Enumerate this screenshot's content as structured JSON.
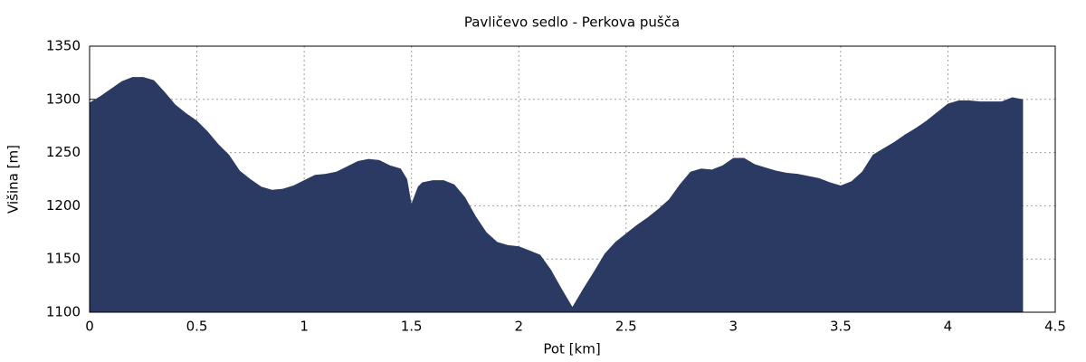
{
  "chart_data": {
    "type": "area",
    "title": "Pavličevo sedlo - Perkova pušča",
    "xlabel": "Pot [km]",
    "ylabel": "Višina [m]",
    "color": "#2b3a63",
    "grid": true,
    "xlim": [
      0,
      4.5
    ],
    "xticks": [
      0,
      0.5,
      1,
      1.5,
      2,
      2.5,
      3,
      3.5,
      4,
      4.5
    ],
    "ylim": [
      1100,
      1350
    ],
    "yticks": [
      1100,
      1150,
      1200,
      1250,
      1300,
      1350
    ],
    "x": [
      0,
      0.05,
      0.1,
      0.15,
      0.2,
      0.25,
      0.3,
      0.35,
      0.4,
      0.45,
      0.5,
      0.55,
      0.6,
      0.65,
      0.7,
      0.75,
      0.8,
      0.85,
      0.9,
      0.95,
      1.0,
      1.05,
      1.1,
      1.15,
      1.2,
      1.25,
      1.3,
      1.35,
      1.4,
      1.45,
      1.48,
      1.5,
      1.53,
      1.55,
      1.6,
      1.65,
      1.7,
      1.75,
      1.8,
      1.85,
      1.9,
      1.95,
      2.0,
      2.05,
      2.1,
      2.15,
      2.2,
      2.25,
      2.3,
      2.35,
      2.4,
      2.45,
      2.5,
      2.55,
      2.6,
      2.65,
      2.7,
      2.75,
      2.8,
      2.85,
      2.9,
      2.95,
      3.0,
      3.05,
      3.1,
      3.15,
      3.2,
      3.25,
      3.3,
      3.35,
      3.4,
      3.45,
      3.5,
      3.55,
      3.6,
      3.65,
      3.7,
      3.75,
      3.8,
      3.85,
      3.9,
      3.95,
      4.0,
      4.05,
      4.1,
      4.15,
      4.2,
      4.25,
      4.3,
      4.35
    ],
    "values": [
      1297,
      1303,
      1310,
      1317,
      1321,
      1321,
      1318,
      1307,
      1295,
      1287,
      1280,
      1270,
      1258,
      1248,
      1233,
      1225,
      1218,
      1215,
      1216,
      1219,
      1224,
      1229,
      1230,
      1232,
      1237,
      1242,
      1244,
      1243,
      1238,
      1235,
      1225,
      1202,
      1218,
      1222,
      1224,
      1224,
      1220,
      1208,
      1190,
      1175,
      1166,
      1163,
      1162,
      1158,
      1154,
      1140,
      1122,
      1105,
      1122,
      1138,
      1155,
      1166,
      1174,
      1182,
      1189,
      1197,
      1206,
      1220,
      1232,
      1235,
      1234,
      1238,
      1245,
      1245,
      1239,
      1236,
      1233,
      1231,
      1230,
      1228,
      1226,
      1222,
      1219,
      1223,
      1232,
      1248,
      1254,
      1260,
      1267,
      1273,
      1280,
      1288,
      1296,
      1299,
      1299,
      1298,
      1298,
      1298,
      1302,
      1300
    ]
  }
}
